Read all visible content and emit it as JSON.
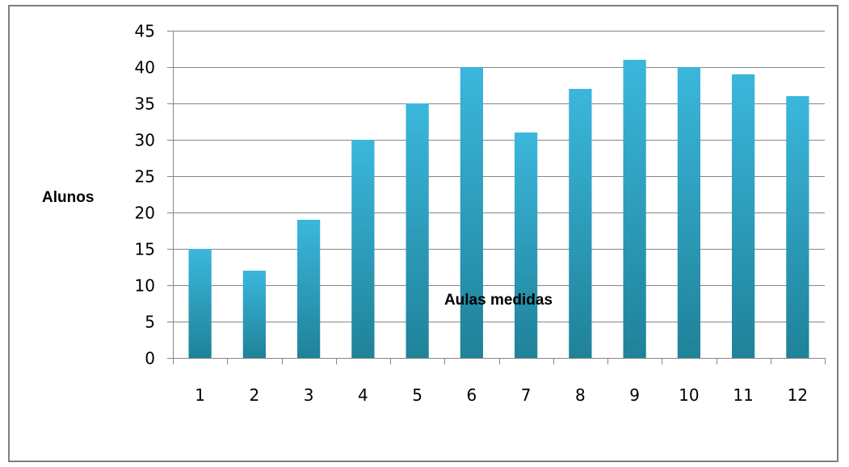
{
  "chart_data": {
    "type": "bar",
    "title": "",
    "xlabel": "Aulas medidas",
    "ylabel": "Alunos",
    "categories": [
      "1",
      "2",
      "3",
      "4",
      "5",
      "6",
      "7",
      "8",
      "9",
      "10",
      "11",
      "12"
    ],
    "values": [
      15,
      12,
      19,
      30,
      35,
      40,
      31,
      37,
      41,
      40,
      39,
      36
    ],
    "ylim": [
      0,
      45
    ],
    "yticks": [
      0,
      5,
      10,
      15,
      20,
      25,
      30,
      35,
      40,
      45
    ],
    "grid": true,
    "legend": "none",
    "colors": {
      "bar_top": "#3bb7dc",
      "bar_bottom": "#1f8299",
      "grid": "#868686",
      "axis": "#868686",
      "frame": "#7f7f7f"
    }
  }
}
